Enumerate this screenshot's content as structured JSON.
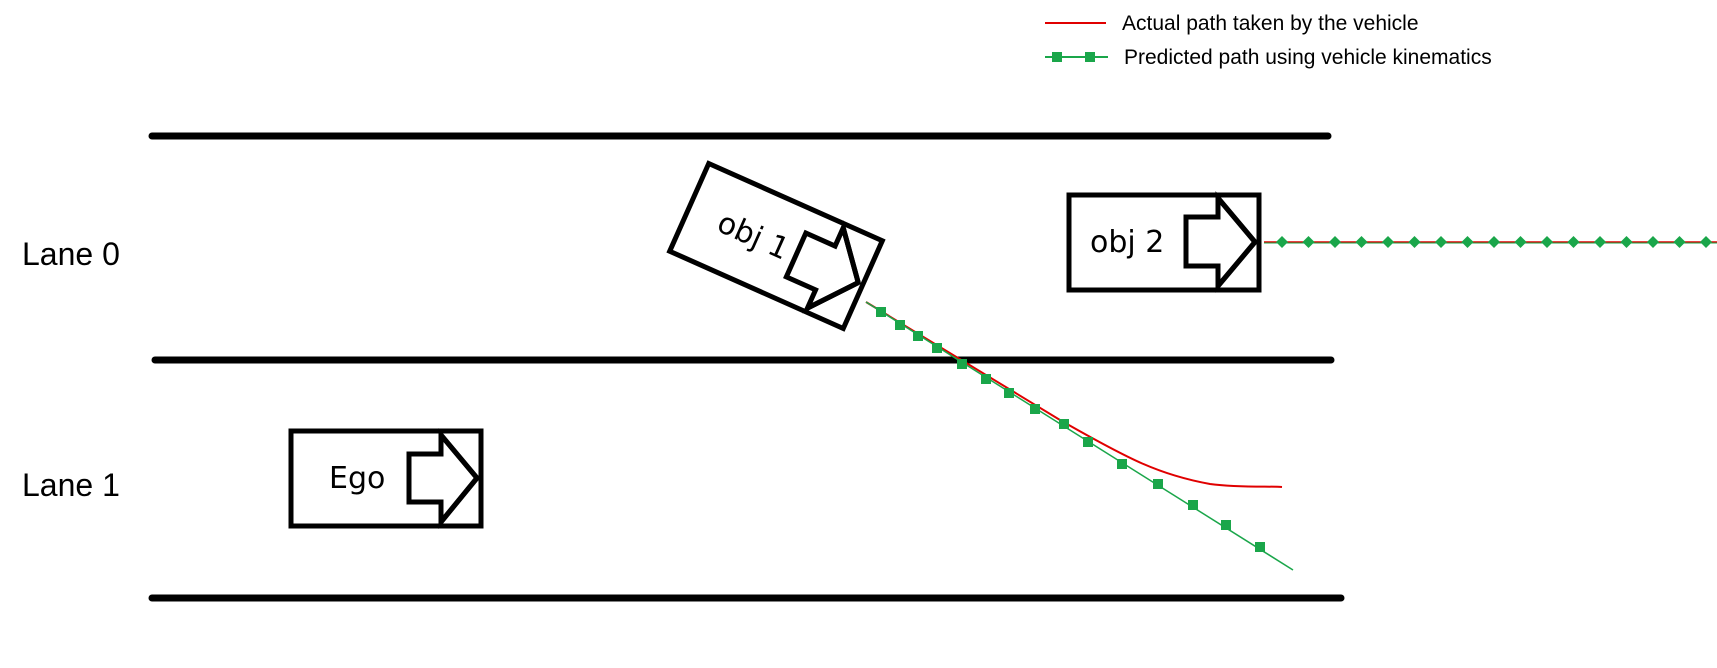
{
  "legend": {
    "actual_label": "Actual path taken by the vehicle",
    "predicted_label": "Predicted path using vehicle kinematics"
  },
  "lanes": {
    "lane0_label": "Lane 0",
    "lane1_label": "Lane 1"
  },
  "vehicles": {
    "ego_label": "Ego",
    "obj1_label": "obj 1",
    "obj2_label": "obj 2"
  },
  "colors": {
    "actual_path": "#e00000",
    "predicted_path": "#1aa64a",
    "lane_line": "#000000",
    "vehicle_outline": "#000000"
  },
  "icons": {
    "vehicle_heading": "arrow-right-icon",
    "predicted_marker": "square-marker",
    "obj2_predicted_marker": "diamond-marker"
  }
}
